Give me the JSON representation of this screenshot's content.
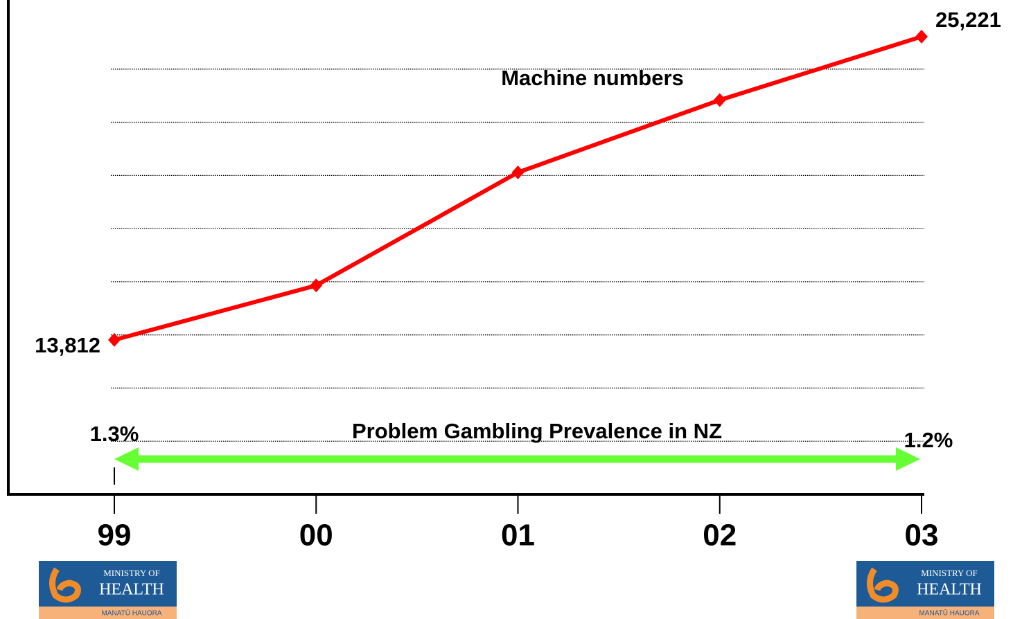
{
  "chart_data": {
    "type": "line",
    "categories": [
      "99",
      "00",
      "01",
      "02",
      "03"
    ],
    "series": [
      {
        "name": "Machine numbers",
        "color": "#ff0000",
        "values": [
          13812,
          15860,
          20113,
          22836,
          25221
        ],
        "value_labels": [
          "13,812",
          null,
          null,
          null,
          "25,221"
        ]
      }
    ],
    "ylim": [
      8000,
      26600
    ],
    "yticks": [
      10000,
      12000,
      14000,
      16000,
      18000,
      20000,
      22000,
      24000
    ],
    "grid": true,
    "prevalence": {
      "title": "Problem Gambling Prevalence in NZ",
      "start": "1.3%",
      "end": "1.2%",
      "color": "#66ff33"
    },
    "logo": {
      "line1": "MINISTRY OF",
      "line2": "HEALTH",
      "line3": "MANATŪ HAUORA"
    }
  }
}
